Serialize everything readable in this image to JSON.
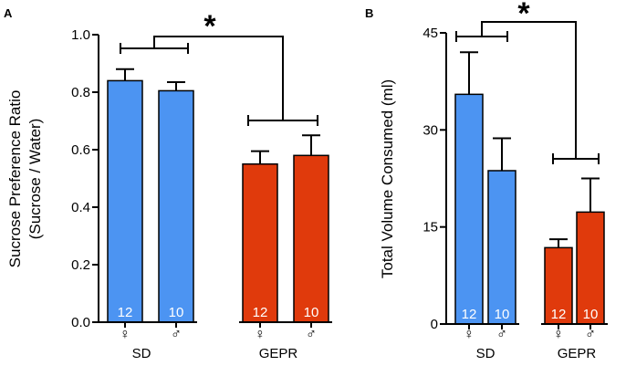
{
  "colors": {
    "sd": "#4C94F2",
    "gepr": "#E03A0C",
    "axis": "#000000"
  },
  "chart_data": [
    {
      "panel": "A",
      "type": "bar",
      "ylabel_line1": "Sucrose Preference Ratio",
      "ylabel_line2": "(Sucrose / Water)",
      "ylim": [
        0,
        1.0
      ],
      "yticks": [
        "0.0",
        "0.2",
        "0.4",
        "0.6",
        "0.8",
        "1.0"
      ],
      "ytick_values": [
        0,
        0.2,
        0.4,
        0.6,
        0.8,
        1.0
      ],
      "groups": [
        "SD",
        "GEPR"
      ],
      "sex_labels": [
        "♀",
        "♂",
        "♀",
        "♂"
      ],
      "bars": [
        {
          "group": "SD",
          "sex": "female",
          "value": 0.84,
          "err": 0.04,
          "n": "12"
        },
        {
          "group": "SD",
          "sex": "male",
          "value": 0.805,
          "err": 0.03,
          "n": "10"
        },
        {
          "group": "GEPR",
          "sex": "female",
          "value": 0.55,
          "err": 0.045,
          "n": "12"
        },
        {
          "group": "GEPR",
          "sex": "male",
          "value": 0.58,
          "err": 0.07,
          "n": "10"
        }
      ],
      "significance": "*"
    },
    {
      "panel": "B",
      "type": "bar",
      "ylabel_line1": "Total Volume Consumed (ml)",
      "ylim": [
        0,
        45
      ],
      "yticks": [
        "0",
        "15",
        "30",
        "45"
      ],
      "ytick_values": [
        0,
        15,
        30,
        45
      ],
      "groups": [
        "SD",
        "GEPR"
      ],
      "sex_labels": [
        "♀",
        "♂",
        "♀",
        "♂"
      ],
      "bars": [
        {
          "group": "SD",
          "sex": "female",
          "value": 35.5,
          "err": 6.5,
          "n": "12"
        },
        {
          "group": "SD",
          "sex": "male",
          "value": 23.7,
          "err": 5.0,
          "n": "10"
        },
        {
          "group": "GEPR",
          "sex": "female",
          "value": 11.8,
          "err": 1.3,
          "n": "12"
        },
        {
          "group": "GEPR",
          "sex": "male",
          "value": 17.3,
          "err": 5.2,
          "n": "10"
        }
      ],
      "significance": "*"
    }
  ]
}
